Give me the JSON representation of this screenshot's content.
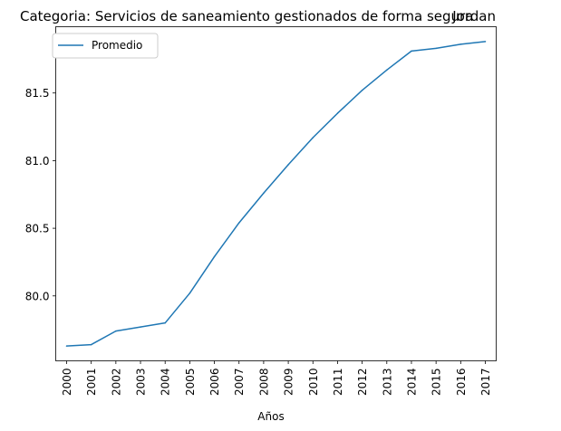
{
  "chart_data": {
    "type": "line",
    "title": "Categoria: Servicios de saneamiento gestionados de forma segura",
    "title_right": "Jordan",
    "xlabel": "Años",
    "ylabel": "",
    "categories": [
      "2000",
      "2001",
      "2002",
      "2003",
      "2004",
      "2005",
      "2006",
      "2007",
      "2008",
      "2009",
      "2010",
      "2011",
      "2012",
      "2013",
      "2014",
      "2015",
      "2016",
      "2017"
    ],
    "series": [
      {
        "name": "Promedio",
        "color": "#1f77b4",
        "values": [
          79.63,
          79.64,
          79.74,
          79.77,
          79.8,
          80.02,
          80.29,
          80.54,
          80.76,
          80.97,
          81.17,
          81.35,
          81.52,
          81.67,
          81.81,
          81.83,
          81.86,
          81.88
        ]
      }
    ],
    "ylim": [
      79.52,
      81.99
    ],
    "yticks": [
      80.0,
      80.5,
      81.0,
      81.5
    ],
    "ytick_labels": [
      "80.0",
      "80.5",
      "81.0",
      "81.5"
    ],
    "grid": false,
    "legend_position": "upper-left"
  }
}
